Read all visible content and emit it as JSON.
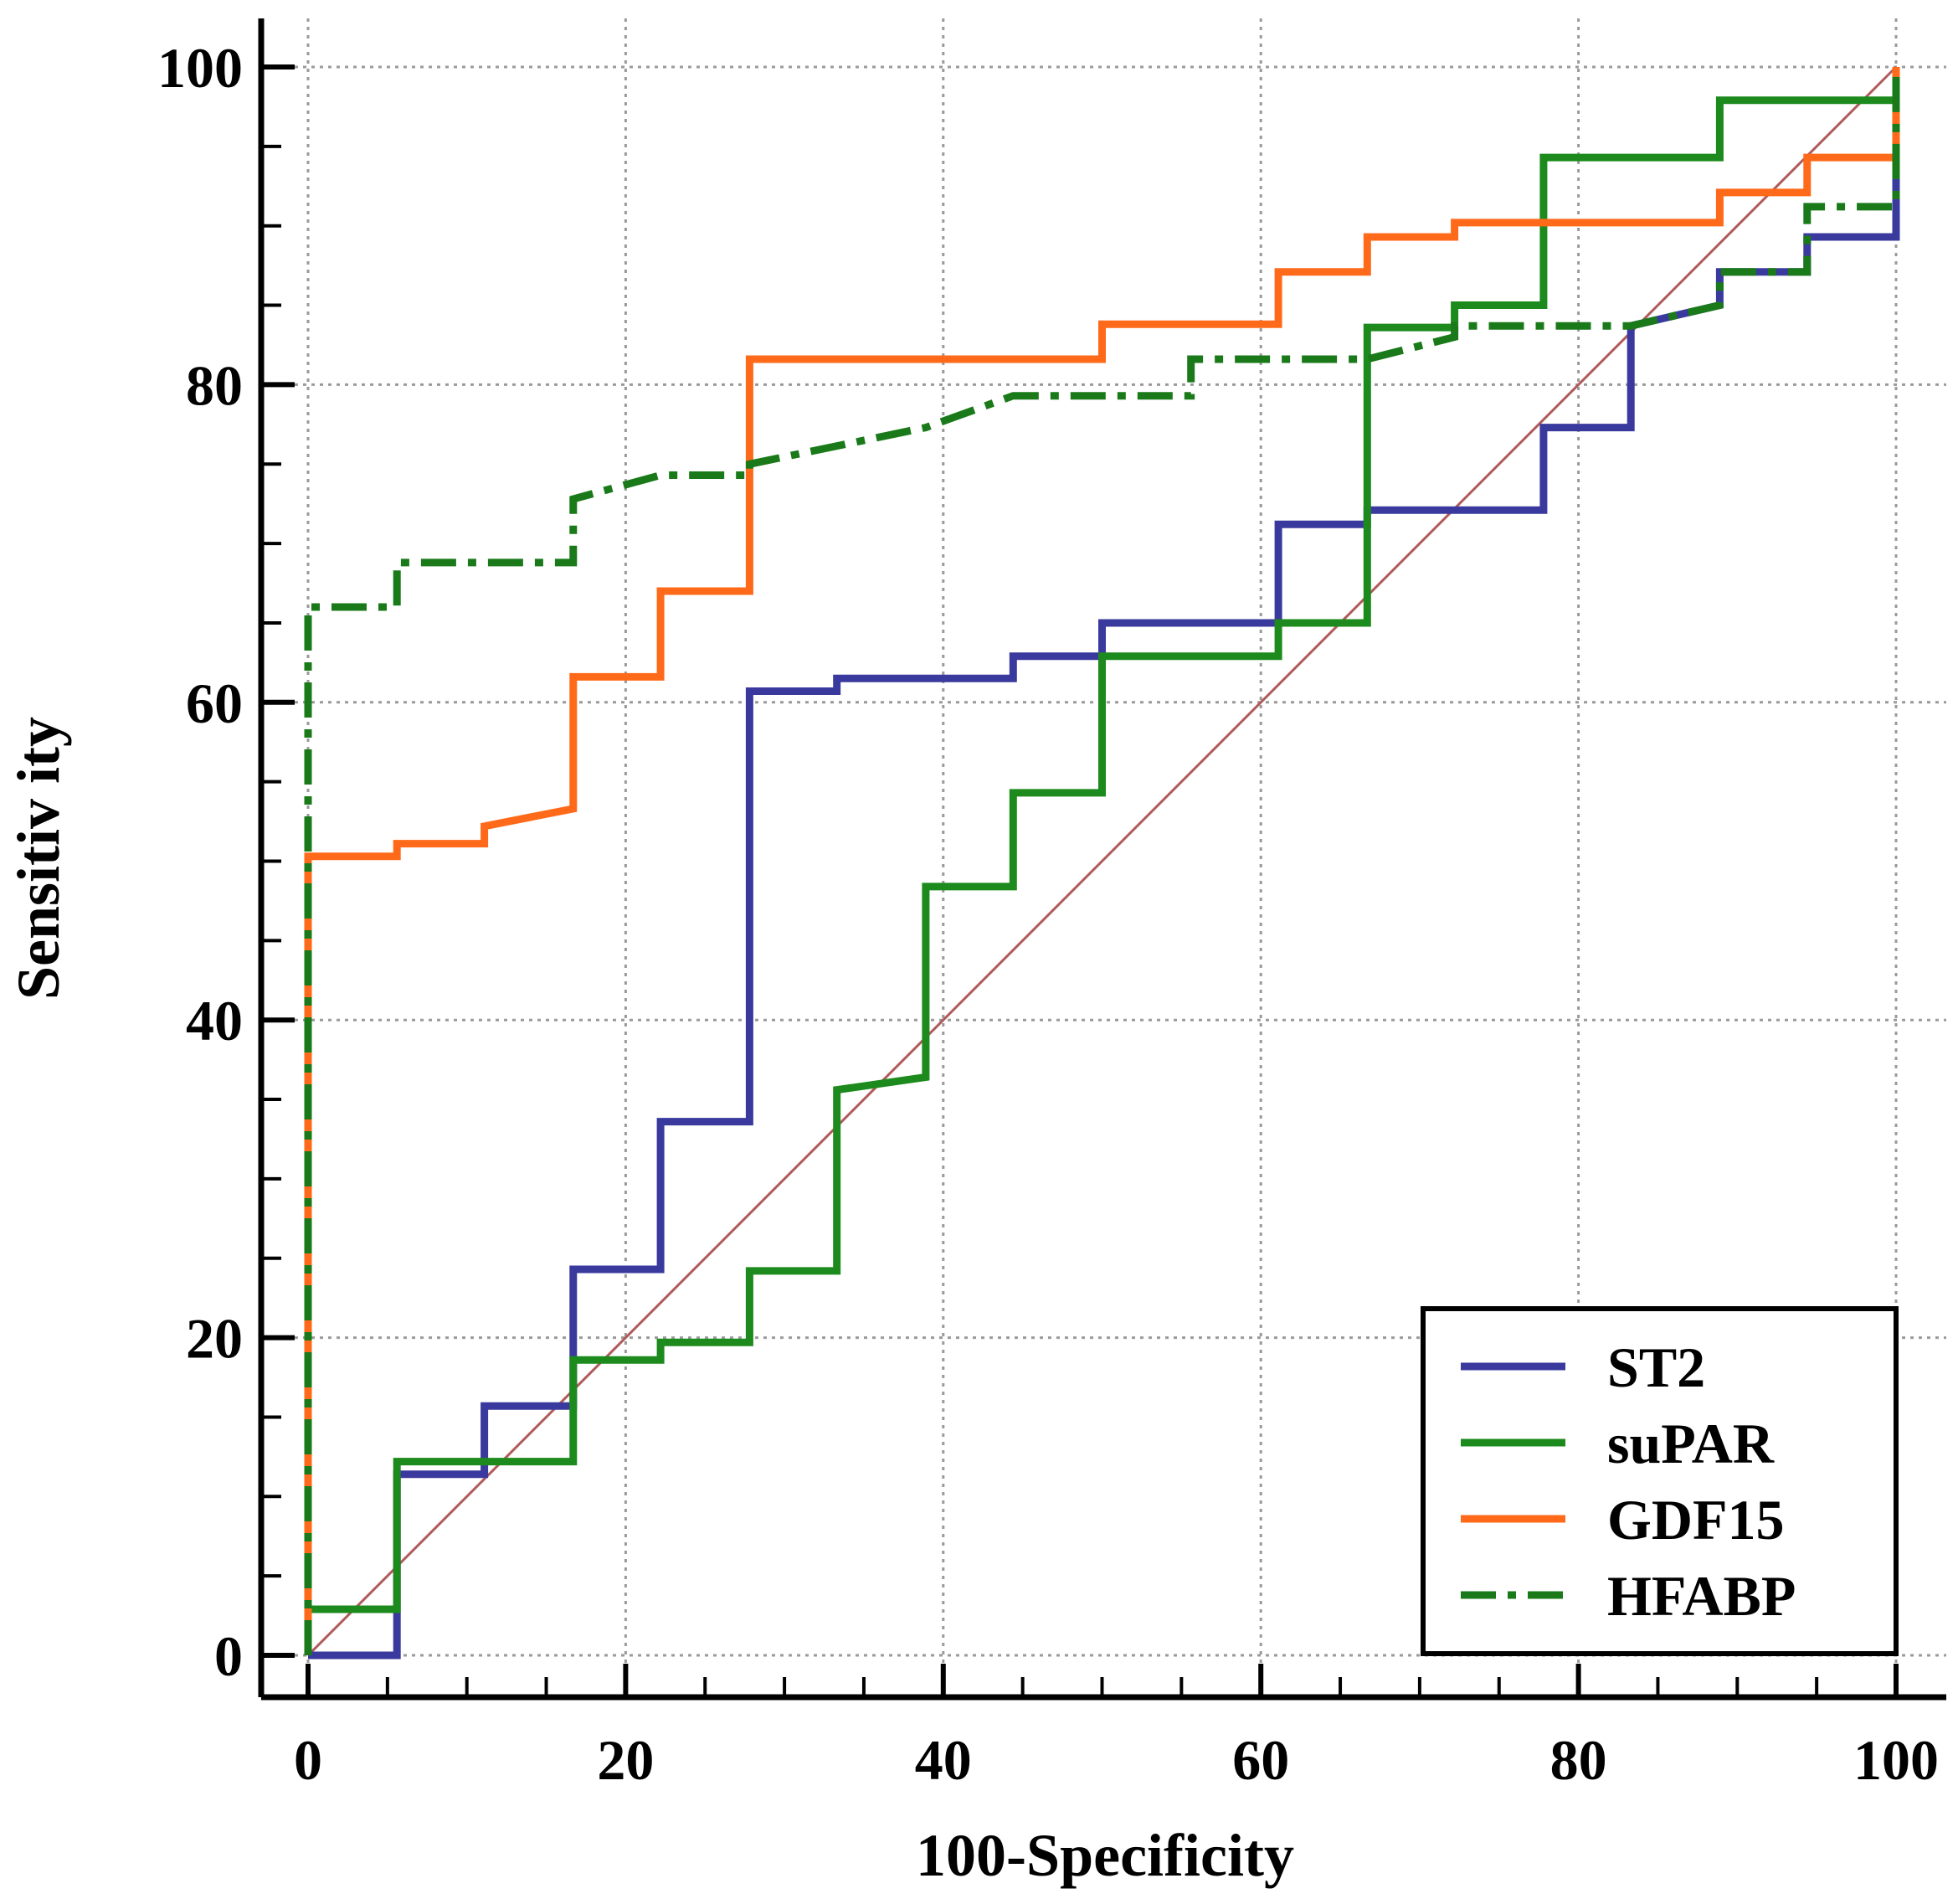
{
  "chart_data": {
    "type": "line",
    "title": "",
    "xlabel": "100-Specificity",
    "ylabel": "Sensitiv ity",
    "xlim": [
      0,
      100
    ],
    "ylim": [
      0,
      100
    ],
    "x_ticks": [
      0,
      20,
      40,
      60,
      80,
      100
    ],
    "y_ticks": [
      0,
      20,
      40,
      60,
      80,
      100
    ],
    "grid": true,
    "legend_position": "bottom-right",
    "reference_line": {
      "name": "diagonal",
      "color": "#b05a5a",
      "points": [
        [
          0,
          0
        ],
        [
          100,
          100
        ]
      ]
    },
    "series": [
      {
        "name": "ST2",
        "color": "#3a3a9e",
        "style": "solid",
        "points": [
          [
            0,
            0
          ],
          [
            5.6,
            0
          ],
          [
            5.6,
            11.4
          ],
          [
            11.1,
            11.4
          ],
          [
            11.1,
            15.7
          ],
          [
            16.7,
            15.7
          ],
          [
            16.7,
            24.3
          ],
          [
            22.2,
            24.3
          ],
          [
            22.2,
            33.6
          ],
          [
            27.8,
            33.6
          ],
          [
            27.8,
            60.7
          ],
          [
            33.3,
            60.7
          ],
          [
            33.3,
            61.5
          ],
          [
            44.4,
            61.5
          ],
          [
            44.4,
            62.9
          ],
          [
            50,
            62.9
          ],
          [
            50,
            65
          ],
          [
            61.1,
            65
          ],
          [
            61.1,
            71.2
          ],
          [
            66.7,
            71.2
          ],
          [
            66.7,
            72.1
          ],
          [
            77.8,
            72.1
          ],
          [
            77.8,
            77.3
          ],
          [
            83.3,
            77.3
          ],
          [
            83.3,
            83.7
          ],
          [
            88.9,
            85
          ],
          [
            88.9,
            87.1
          ],
          [
            94.4,
            87.1
          ],
          [
            94.4,
            89.3
          ],
          [
            100,
            89.3
          ],
          [
            100,
            100
          ]
        ]
      },
      {
        "name": "suPAR",
        "color": "#1c8a1c",
        "style": "solid",
        "points": [
          [
            0,
            0
          ],
          [
            0,
            2.9
          ],
          [
            5.6,
            2.9
          ],
          [
            5.6,
            12.2
          ],
          [
            16.7,
            12.2
          ],
          [
            16.7,
            18.6
          ],
          [
            22.2,
            18.6
          ],
          [
            22.2,
            19.7
          ],
          [
            27.8,
            19.7
          ],
          [
            27.8,
            24.2
          ],
          [
            33.3,
            24.2
          ],
          [
            33.3,
            35.6
          ],
          [
            38.9,
            36.4
          ],
          [
            38.9,
            48.4
          ],
          [
            44.4,
            48.4
          ],
          [
            44.4,
            54.3
          ],
          [
            50,
            54.3
          ],
          [
            50,
            62.9
          ],
          [
            61.1,
            62.9
          ],
          [
            61.1,
            65
          ],
          [
            66.7,
            65
          ],
          [
            66.7,
            83.6
          ],
          [
            72.2,
            83.6
          ],
          [
            72.2,
            85
          ],
          [
            77.8,
            85
          ],
          [
            77.8,
            94.3
          ],
          [
            88.9,
            94.3
          ],
          [
            88.9,
            97.9
          ],
          [
            100,
            97.9
          ],
          [
            100,
            100
          ]
        ]
      },
      {
        "name": "GDF15",
        "color": "#ff6a1a",
        "style": "solid",
        "points": [
          [
            0,
            0
          ],
          [
            0,
            50.3
          ],
          [
            5.6,
            50.3
          ],
          [
            5.6,
            51.1
          ],
          [
            11.1,
            51.1
          ],
          [
            11.1,
            52.2
          ],
          [
            16.7,
            53.3
          ],
          [
            16.7,
            61.6
          ],
          [
            22.2,
            61.6
          ],
          [
            22.2,
            67
          ],
          [
            27.8,
            67
          ],
          [
            27.8,
            81.6
          ],
          [
            50,
            81.6
          ],
          [
            50,
            83.8
          ],
          [
            61.1,
            83.8
          ],
          [
            61.1,
            87.1
          ],
          [
            66.7,
            87.1
          ],
          [
            66.7,
            89.3
          ],
          [
            72.2,
            89.3
          ],
          [
            72.2,
            90.2
          ],
          [
            88.9,
            90.2
          ],
          [
            88.9,
            92.1
          ],
          [
            94.4,
            92.1
          ],
          [
            94.4,
            94.3
          ],
          [
            100,
            94.3
          ],
          [
            100,
            100
          ]
        ]
      },
      {
        "name": "HFABP",
        "color": "#1a7a1a",
        "style": "dashdot",
        "points": [
          [
            0,
            0
          ],
          [
            0,
            66
          ],
          [
            5.6,
            66
          ],
          [
            5.6,
            68.8
          ],
          [
            16.7,
            68.8
          ],
          [
            16.7,
            72.8
          ],
          [
            22.2,
            74.3
          ],
          [
            27.8,
            74.3
          ],
          [
            27.8,
            75
          ],
          [
            38.9,
            77.3
          ],
          [
            44.4,
            79.3
          ],
          [
            55.6,
            79.3
          ],
          [
            55.6,
            81.6
          ],
          [
            66.7,
            81.6
          ],
          [
            72.2,
            83
          ],
          [
            72.2,
            83.7
          ],
          [
            83.3,
            83.7
          ],
          [
            88.9,
            85
          ],
          [
            88.9,
            87.1
          ],
          [
            94.4,
            87.1
          ],
          [
            94.4,
            91.2
          ],
          [
            100,
            91.2
          ],
          [
            100,
            100
          ]
        ]
      }
    ]
  }
}
